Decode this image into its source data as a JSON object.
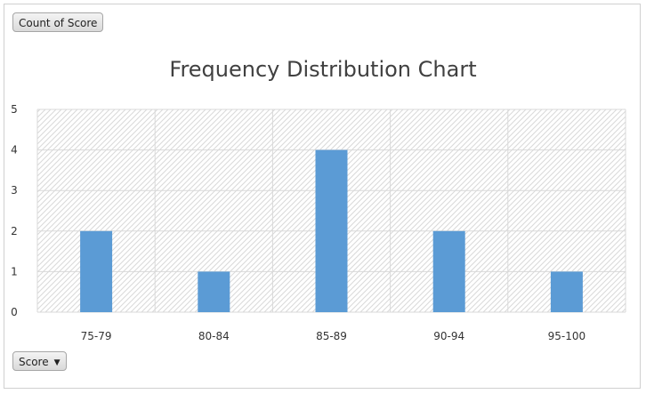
{
  "buttons": {
    "value_field": "Count of Score",
    "axis_field": "Score"
  },
  "chart_data": {
    "type": "bar",
    "title": "Frequency Distribution Chart",
    "categories": [
      "75-79",
      "80-84",
      "85-89",
      "90-94",
      "95-100"
    ],
    "values": [
      2,
      1,
      4,
      2,
      1
    ],
    "yticks": [
      0,
      1,
      2,
      3,
      4,
      5
    ],
    "ylim": [
      0,
      5
    ],
    "grid": true,
    "legend": "none",
    "colors": {
      "bar": "#5b9bd5",
      "grid": "#d9d9d9",
      "hatch": "#d9d9d9"
    }
  }
}
